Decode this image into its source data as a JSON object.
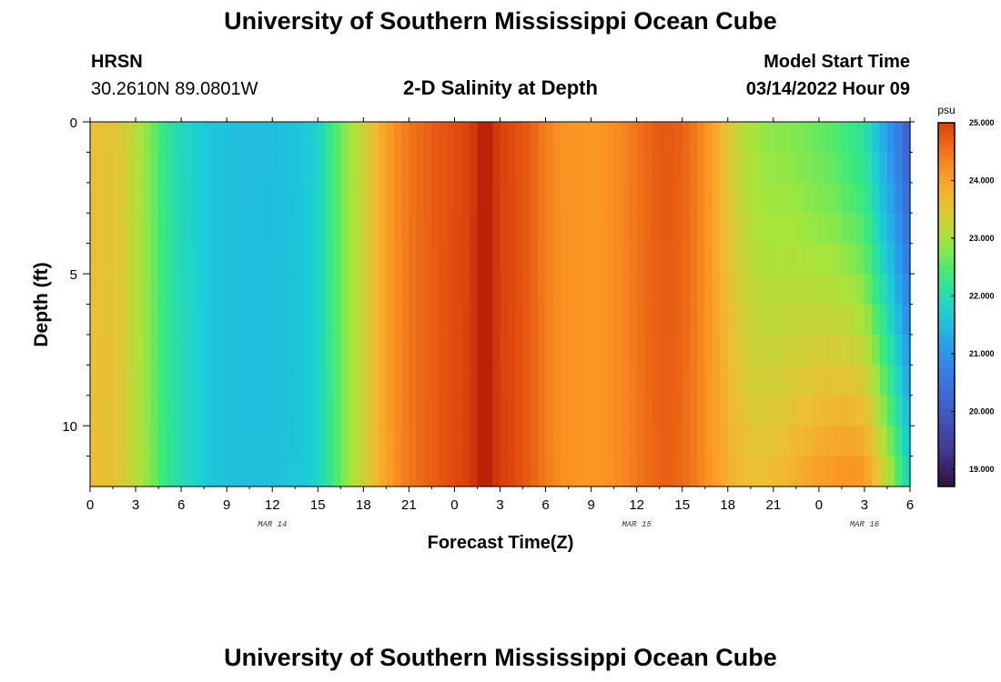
{
  "header": {
    "title": "University of Southern Mississippi Ocean Cube",
    "station": "HRSN",
    "coords": "30.2610N  89.0801W",
    "subtitle": "2-D Salinity at Depth",
    "model_label": "Model Start Time",
    "model_time": "03/14/2022 Hour 09"
  },
  "footer": {
    "title": "University of Southern Mississippi Ocean Cube"
  },
  "chart_data": {
    "type": "heatmap",
    "title": "2-D Salinity at Depth",
    "xlabel": "Forecast Time(Z)",
    "ylabel": "Depth (ft)",
    "x_tick_labels": [
      "0",
      "3",
      "6",
      "9",
      "12",
      "15",
      "18",
      "21",
      "0",
      "3",
      "6",
      "9",
      "12",
      "15",
      "18",
      "21",
      "0",
      "3",
      "6"
    ],
    "x_hours_from_start": [
      0,
      3,
      6,
      9,
      12,
      15,
      18,
      21,
      24,
      27,
      30,
      33,
      36,
      39,
      42,
      45,
      48,
      51,
      54
    ],
    "x_range_hours": [
      0,
      54
    ],
    "date_labels": [
      {
        "text": "MAR 14",
        "hour": 12
      },
      {
        "text": "MAR 15",
        "hour": 36
      },
      {
        "text": "MAR 16",
        "hour": 51
      }
    ],
    "y_tick_labels": [
      "0",
      "5",
      "10"
    ],
    "y_ticks_ft": [
      0,
      5,
      10
    ],
    "y_range_ft": [
      0,
      12
    ],
    "colorbar": {
      "unit": "psu",
      "min": 18.7,
      "max": 25.0,
      "tick_labels": [
        "25.000",
        "24.000",
        "23.000",
        "22.000",
        "21.000",
        "20.000",
        "19.000"
      ],
      "tick_values": [
        25,
        24,
        23,
        22,
        21,
        20,
        19
      ]
    },
    "surface_salinity_by_hour": [
      [
        0,
        23.6
      ],
      [
        2,
        23.5
      ],
      [
        3,
        23.1
      ],
      [
        4,
        22.7
      ],
      [
        5,
        22.2
      ],
      [
        6,
        21.9
      ],
      [
        8,
        21.6
      ],
      [
        10,
        21.5
      ],
      [
        12,
        21.5
      ],
      [
        14,
        21.6
      ],
      [
        15,
        21.8
      ],
      [
        16,
        22.4
      ],
      [
        17,
        22.9
      ],
      [
        18,
        23.3
      ],
      [
        19,
        23.8
      ],
      [
        20,
        24.2
      ],
      [
        21,
        24.5
      ],
      [
        23,
        24.8
      ],
      [
        25,
        25.0
      ],
      [
        26,
        25.4
      ],
      [
        27,
        25.0
      ],
      [
        28,
        24.9
      ],
      [
        29,
        24.7
      ],
      [
        30,
        24.4
      ],
      [
        31,
        24.2
      ],
      [
        33,
        24.1
      ],
      [
        35,
        24.3
      ],
      [
        36,
        24.5
      ],
      [
        37,
        24.7
      ],
      [
        38,
        24.8
      ],
      [
        39,
        24.7
      ],
      [
        40,
        24.4
      ],
      [
        41,
        24.0
      ],
      [
        42,
        23.5
      ],
      [
        43,
        23.1
      ],
      [
        44,
        22.9
      ],
      [
        45,
        22.8
      ],
      [
        46,
        22.8
      ],
      [
        47,
        22.7
      ],
      [
        48,
        22.6
      ],
      [
        49,
        22.5
      ],
      [
        50,
        22.3
      ],
      [
        51,
        22.1
      ],
      [
        52,
        21.4
      ],
      [
        53,
        20.8
      ],
      [
        54,
        20.0
      ]
    ],
    "bottom_salinity_by_hour": [
      [
        0,
        23.8
      ],
      [
        4,
        23.1
      ],
      [
        8,
        21.6
      ],
      [
        15,
        21.7
      ],
      [
        19,
        23.9
      ],
      [
        26,
        25.4
      ],
      [
        33,
        24.1
      ],
      [
        40,
        24.4
      ],
      [
        44,
        23.8
      ],
      [
        46,
        23.8
      ],
      [
        48,
        24.1
      ],
      [
        50,
        24.3
      ],
      [
        51,
        24.2
      ],
      [
        52,
        23.6
      ],
      [
        53,
        22.8
      ],
      [
        54,
        21.8
      ]
    ]
  }
}
